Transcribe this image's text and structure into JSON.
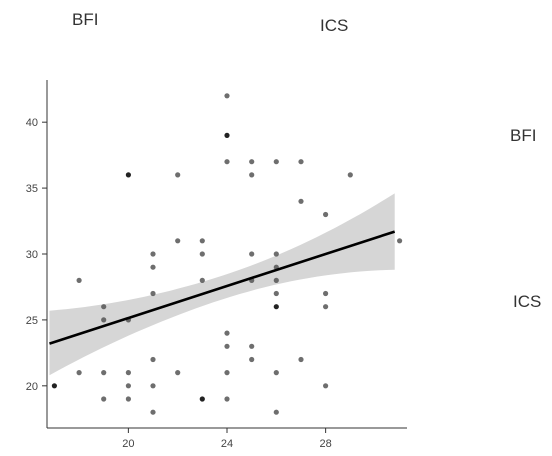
{
  "header": {
    "left": "BFI",
    "right": "ICS"
  },
  "row_labels": [
    "BFI",
    "ICS"
  ],
  "chart_data": {
    "type": "scatter",
    "title": "",
    "xlabel": "",
    "ylabel": "",
    "xlim": [
      16.7,
      31.3
    ],
    "ylim": [
      16.8,
      43.2
    ],
    "x_ticks": [
      20,
      24,
      28
    ],
    "y_ticks": [
      20,
      25,
      30,
      35,
      40
    ],
    "grid": false,
    "colors": {
      "points": "#555555",
      "dark_points": "#222222",
      "line": "#000000",
      "band": "#d6d6d6"
    },
    "points": [
      [
        17,
        20
      ],
      [
        18,
        28
      ],
      [
        18,
        21
      ],
      [
        19,
        26
      ],
      [
        19,
        25
      ],
      [
        19,
        21
      ],
      [
        19,
        19
      ],
      [
        20,
        36
      ],
      [
        20,
        25
      ],
      [
        20,
        21
      ],
      [
        20,
        20
      ],
      [
        20,
        19
      ],
      [
        21,
        30
      ],
      [
        21,
        29
      ],
      [
        21,
        27
      ],
      [
        21,
        22
      ],
      [
        21,
        20
      ],
      [
        21,
        18
      ],
      [
        22,
        36
      ],
      [
        22,
        31
      ],
      [
        22,
        21
      ],
      [
        23,
        31
      ],
      [
        23,
        30
      ],
      [
        23,
        28
      ],
      [
        23,
        19
      ],
      [
        24,
        42
      ],
      [
        24,
        39
      ],
      [
        24,
        37
      ],
      [
        24,
        24
      ],
      [
        24,
        23
      ],
      [
        24,
        21
      ],
      [
        24,
        19
      ],
      [
        25,
        37
      ],
      [
        25,
        36
      ],
      [
        25,
        30
      ],
      [
        25,
        28
      ],
      [
        25,
        23
      ],
      [
        25,
        22
      ],
      [
        26,
        37
      ],
      [
        26,
        30
      ],
      [
        26,
        29
      ],
      [
        26,
        28
      ],
      [
        26,
        27
      ],
      [
        26,
        26
      ],
      [
        26,
        21
      ],
      [
        26,
        18
      ],
      [
        27,
        37
      ],
      [
        27,
        34
      ],
      [
        27,
        22
      ],
      [
        28,
        33
      ],
      [
        28,
        27
      ],
      [
        28,
        26
      ],
      [
        28,
        20
      ],
      [
        29,
        36
      ],
      [
        31,
        31
      ]
    ],
    "dark_points": [
      [
        17,
        20
      ],
      [
        20,
        36
      ],
      [
        24,
        39
      ],
      [
        26,
        26
      ],
      [
        23,
        19
      ]
    ],
    "regression": {
      "x": [
        16.8,
        30.8
      ],
      "y": [
        23.2,
        31.7
      ],
      "ci_lower": [
        20.8,
        28.8
      ],
      "ci_upper": [
        25.7,
        34.6
      ]
    }
  }
}
